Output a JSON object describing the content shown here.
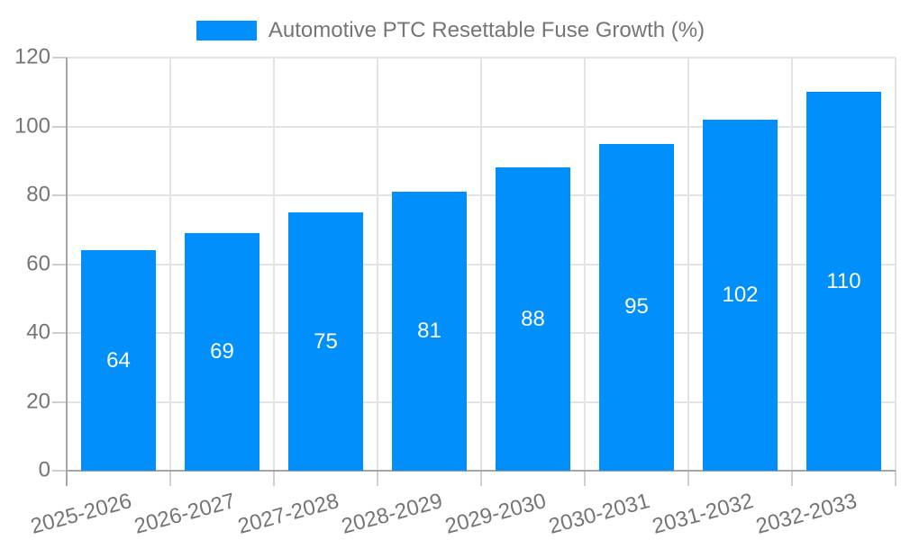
{
  "chart_data": {
    "type": "bar",
    "title": "Automotive PTC Resettable Fuse Growth (%)",
    "categories": [
      "2025-2026",
      "2026-2027",
      "2027-2028",
      "2028-2029",
      "2029-2030",
      "2030-2031",
      "2031-2032",
      "2032-2033"
    ],
    "series": [
      {
        "name": "Automotive PTC Resettable Fuse Growth (%)",
        "values": [
          64,
          69,
          75,
          81,
          88,
          95,
          102,
          110
        ]
      }
    ],
    "xlabel": "",
    "ylabel": "",
    "ylim": [
      0,
      120
    ],
    "yticks": [
      0,
      20,
      40,
      60,
      80,
      100,
      120
    ],
    "grid": true,
    "legend_position": "top-center",
    "x_label_rotation_deg": -15,
    "bar_labels_inside": true,
    "colors": {
      "bar": "#008FFB",
      "bar_label": "#ffffff",
      "axis_text": "#757575",
      "gridline": "#e4e4e4",
      "axis_line": "#a6a6a6",
      "tick_mark": "#cfcfcf",
      "background": "#ffffff"
    }
  }
}
